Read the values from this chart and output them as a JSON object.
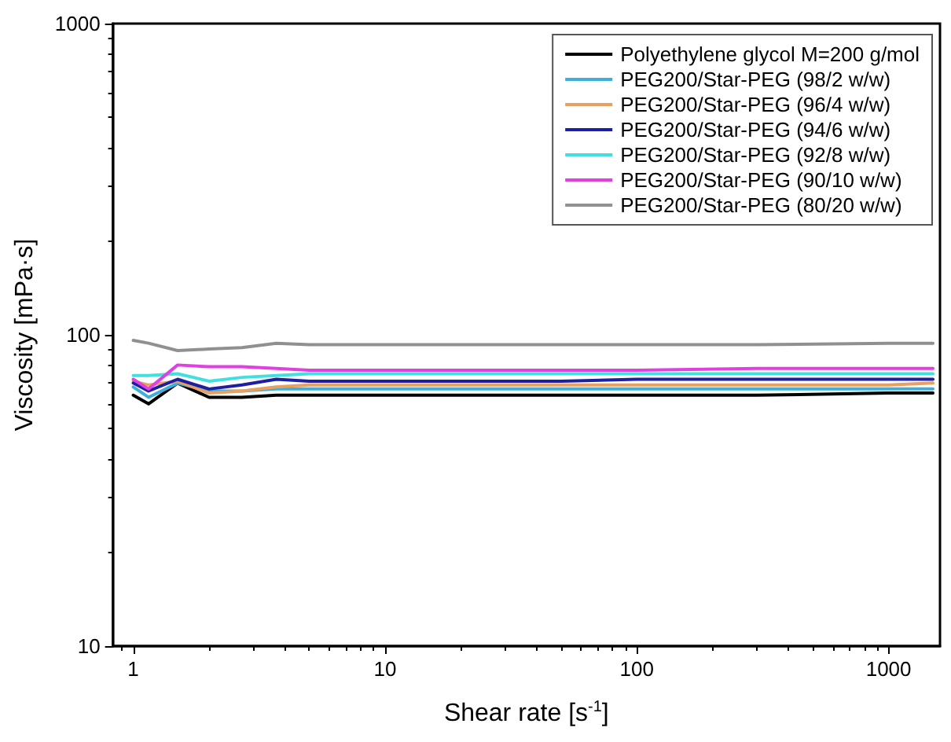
{
  "chart_data": {
    "type": "line",
    "xlabel": "Shear rate [s$^{-1}$]",
    "ylabel": "Viscosity [mPa·s]",
    "log": "xy",
    "xlim": [
      0.83,
      1600
    ],
    "xticks": [
      1,
      10,
      100,
      1000
    ],
    "ylim": [
      10,
      1000
    ],
    "yticks": [
      10,
      100,
      1000
    ],
    "grid": false,
    "legend": "top right",
    "line_style": "solid",
    "marker": "none",
    "x": [
      1,
      1.15,
      1.5,
      2,
      2.7,
      3.7,
      5,
      7,
      10,
      20,
      50,
      100,
      300,
      1000,
      1500
    ],
    "series": [
      {
        "name": "Polyethylene glycol M=200 g/mol",
        "color": "#000000",
        "values": [
          64,
          60,
          70,
          63,
          63,
          64,
          64,
          64,
          64,
          64,
          64,
          64,
          64,
          65,
          65
        ]
      },
      {
        "name": "PEG200/Star-PEG (98/2 w/w)",
        "color": "#3cb0d8",
        "values": [
          68,
          63,
          70,
          66,
          66,
          67,
          67,
          67,
          67,
          67,
          67,
          67,
          67,
          67,
          67
        ]
      },
      {
        "name": "PEG200/Star-PEG (96/4 w/w)",
        "color": "#e8a060",
        "values": [
          71,
          69,
          71,
          65,
          66,
          68,
          69,
          69,
          69,
          69,
          69,
          69,
          69,
          69,
          70
        ]
      },
      {
        "name": "PEG200/Star-PEG (94/6 w/w)",
        "color": "#1e1ea0",
        "values": [
          70,
          66,
          72,
          67,
          69,
          72,
          71,
          71,
          71,
          71,
          71,
          72,
          72,
          72,
          72
        ]
      },
      {
        "name": "PEG200/Star-PEG (92/8 w/w)",
        "color": "#40e0e0",
        "values": [
          74,
          74,
          75,
          71,
          73,
          74,
          75,
          75,
          75,
          75,
          75,
          75,
          75,
          75,
          75
        ]
      },
      {
        "name": "PEG200/Star-PEG (90/10 w/w)",
        "color": "#e040e0",
        "values": [
          72,
          67,
          80,
          79,
          79,
          78,
          77,
          77,
          77,
          77,
          77,
          77,
          78,
          78,
          78
        ]
      },
      {
        "name": "PEG200/Star-PEG (80/20 w/w)",
        "color": "#909090",
        "values": [
          96,
          94,
          89,
          90,
          91,
          94,
          93,
          93,
          93,
          93,
          93,
          93,
          93,
          94,
          94
        ]
      }
    ]
  }
}
